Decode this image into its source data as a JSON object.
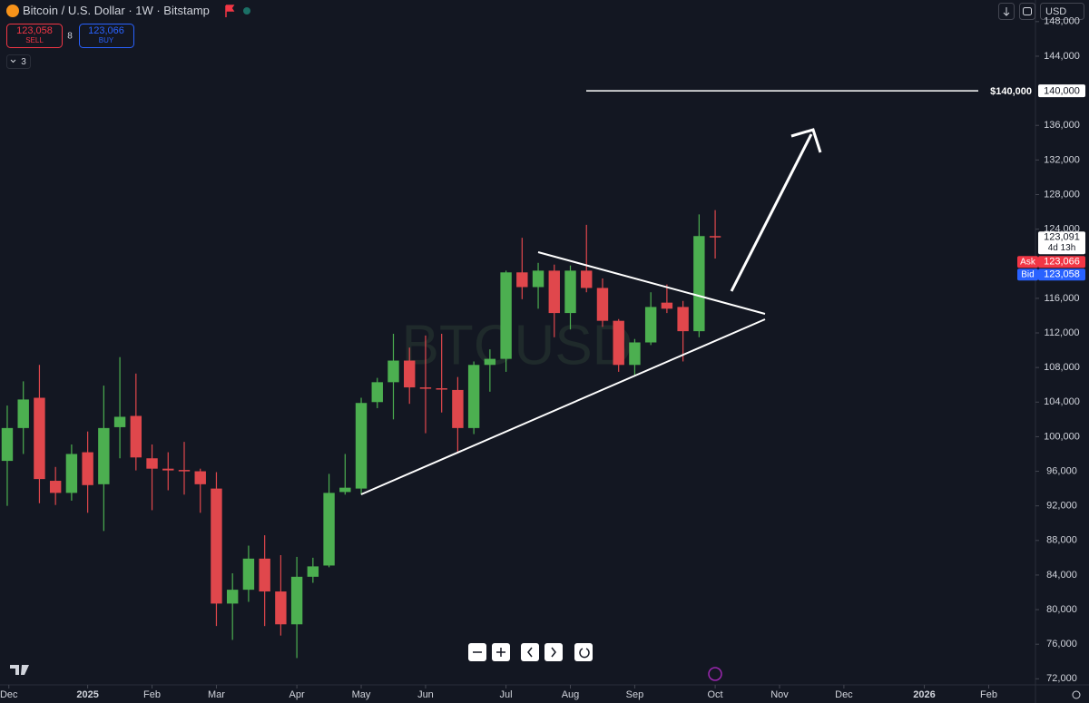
{
  "header": {
    "sell_price": "123,058",
    "sell_label": "SELL",
    "spread": "8",
    "buy_price": "123,066",
    "buy_label": "BUY",
    "indicators": "3",
    "currency": "USD"
  },
  "chart_data": {
    "type": "candlestick",
    "title": "Bitcoin / U.S. Dollar · 1W · Bitstamp",
    "watermark": "BTCUSD",
    "x": [
      0,
      1,
      2,
      3,
      4,
      5,
      6,
      7,
      8,
      9,
      10,
      11,
      12,
      13,
      14,
      15,
      16,
      17,
      18,
      19,
      20,
      21,
      22,
      23,
      24,
      25,
      26,
      27,
      28,
      29,
      30,
      31,
      32,
      33,
      34,
      35,
      36,
      37,
      38,
      39,
      40,
      41,
      42,
      43,
      44
    ],
    "open": [
      97200,
      101000,
      104500,
      94900,
      93500,
      98200,
      94500,
      101100,
      102400,
      97500,
      96300,
      96150,
      96000,
      94000,
      80700,
      82300,
      85900,
      82100,
      78300,
      83800,
      85100,
      93600,
      94000,
      104000,
      106300,
      108800,
      105700,
      105600,
      105400,
      101000,
      108300,
      109000,
      119000,
      117300,
      119200,
      114300,
      119200,
      117200,
      113400,
      108300,
      110900,
      115500,
      115000,
      112200,
      123200
    ],
    "high": [
      103600,
      106400,
      108300,
      96500,
      99100,
      100600,
      105900,
      109200,
      107300,
      99100,
      98200,
      99400,
      96300,
      95900,
      84200,
      87400,
      88600,
      86300,
      86100,
      86000,
      95700,
      98000,
      104500,
      106800,
      111900,
      110300,
      111700,
      111900,
      106900,
      108700,
      110100,
      119200,
      123000,
      120100,
      119900,
      119800,
      124500,
      118300,
      113600,
      111300,
      116700,
      117600,
      115700,
      125700,
      126200
    ],
    "low": [
      92000,
      98000,
      92300,
      92100,
      92600,
      91200,
      89100,
      97500,
      96100,
      91500,
      93800,
      93300,
      91200,
      78100,
      76500,
      80900,
      78100,
      77000,
      74400,
      83100,
      84900,
      93300,
      93300,
      103300,
      102000,
      103800,
      100400,
      102800,
      98200,
      100300,
      105200,
      107500,
      115900,
      114800,
      111500,
      112400,
      116700,
      112700,
      107500,
      107100,
      110600,
      114300,
      108700,
      111500,
      120600
    ],
    "close": [
      101000,
      104300,
      95100,
      93500,
      98000,
      94400,
      101000,
      102300,
      97600,
      96300,
      96100,
      96100,
      94500,
      80700,
      82300,
      85900,
      82100,
      78300,
      83800,
      85000,
      93500,
      94100,
      103900,
      106300,
      108800,
      105700,
      105600,
      105500,
      101000,
      108300,
      109000,
      119000,
      117300,
      119200,
      114300,
      119200,
      117200,
      113400,
      108300,
      110900,
      115000,
      114800,
      112200,
      123200,
      123091
    ],
    "up_color": "#4caf50",
    "down_color": "#e0474c",
    "xlim": [
      -0.45,
      63.85
    ],
    "xticks": [
      {
        "value": 0.1,
        "label": "Dec"
      },
      {
        "value": 5,
        "label": "2025"
      },
      {
        "value": 9,
        "label": "Feb"
      },
      {
        "value": 13,
        "label": "Mar"
      },
      {
        "value": 18,
        "label": "Apr"
      },
      {
        "value": 22,
        "label": "May"
      },
      {
        "value": 26,
        "label": "Jun"
      },
      {
        "value": 31,
        "label": "Jul"
      },
      {
        "value": 35,
        "label": "Aug"
      },
      {
        "value": 39,
        "label": "Sep"
      },
      {
        "value": 44,
        "label": "Oct"
      },
      {
        "value": 48,
        "label": "Nov"
      },
      {
        "value": 52,
        "label": "Dec"
      },
      {
        "value": 57,
        "label": "2026"
      },
      {
        "value": 61,
        "label": "Feb"
      }
    ],
    "ylim": [
      71300,
      150500
    ],
    "yticks": [
      {
        "value": 72000,
        "label": "72,000"
      },
      {
        "value": 76000,
        "label": "76,000"
      },
      {
        "value": 80000,
        "label": "80,000"
      },
      {
        "value": 84000,
        "label": "84,000"
      },
      {
        "value": 88000,
        "label": "88,000"
      },
      {
        "value": 92000,
        "label": "92,000"
      },
      {
        "value": 96000,
        "label": "96,000"
      },
      {
        "value": 100000,
        "label": "100,000"
      },
      {
        "value": 104000,
        "label": "104,000"
      },
      {
        "value": 108000,
        "label": "108,000"
      },
      {
        "value": 112000,
        "label": "112,000"
      },
      {
        "value": 116000,
        "label": "116,000"
      },
      {
        "value": 124000,
        "label": "124,000"
      },
      {
        "value": 128000,
        "label": "128,000"
      },
      {
        "value": 132000,
        "label": "132,000"
      },
      {
        "value": 136000,
        "label": "136,000"
      },
      {
        "value": 144000,
        "label": "144,000"
      },
      {
        "value": 148000,
        "label": "148,000"
      }
    ],
    "level": {
      "value": 140000,
      "label": "$140,000",
      "axis_label": "140,000"
    },
    "last": {
      "value": 123091,
      "label": "123,091",
      "countdown": "4d 13h"
    },
    "ask": {
      "label": "Ask",
      "price": "123,066"
    },
    "bid": {
      "label": "Bid",
      "price": "123,058"
    }
  }
}
